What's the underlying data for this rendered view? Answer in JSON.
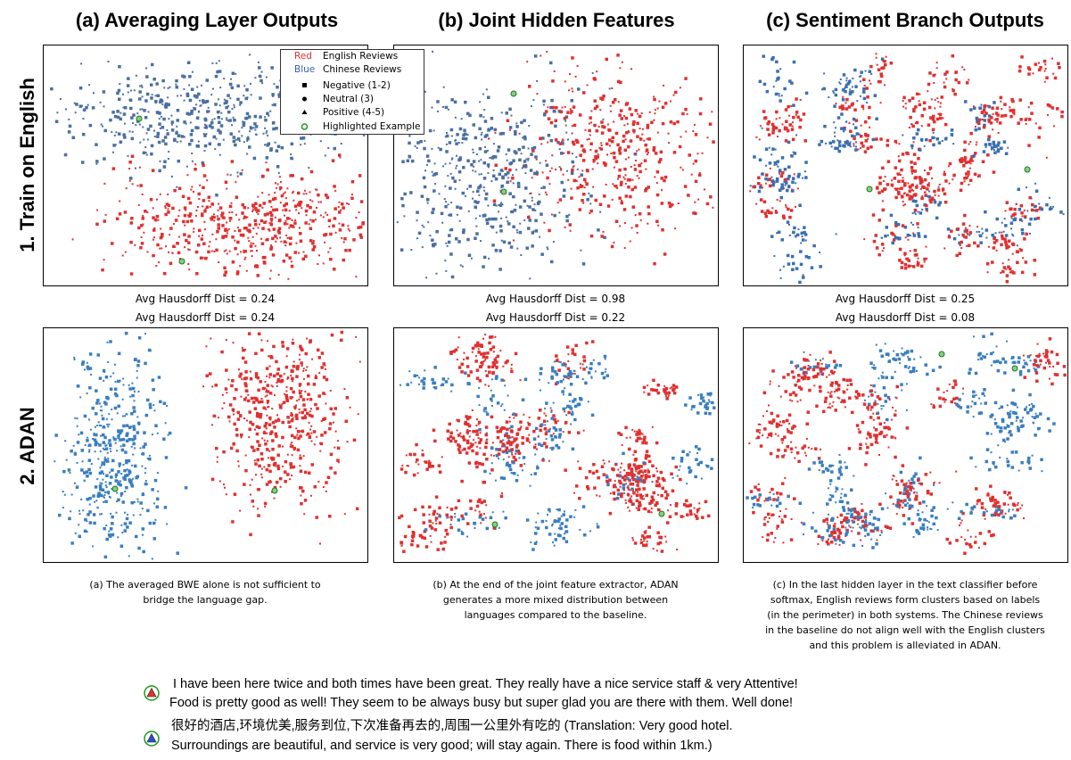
{
  "column_titles": [
    "(a) Averaging Layer Outputs",
    "(b) Joint Hidden Features",
    "(c) Sentiment Branch Outputs"
  ],
  "row_labels": [
    "1. Train on English",
    "2. ADAN"
  ],
  "legend": {
    "items": [
      {
        "key": "Red",
        "label": "English Reviews"
      },
      {
        "key": "Blue",
        "label": "Chinese Reviews"
      },
      {
        "label": "Negative (1-2)"
      },
      {
        "label": "Neutral (3)"
      },
      {
        "label": "Positive (4-5)"
      },
      {
        "label": "Highlighted Example"
      }
    ]
  },
  "distances": [
    [
      "Avg Hausdorff Dist = 0.24",
      "Avg Hausdorff Dist = 0.24"
    ],
    [
      "Avg Hausdorff Dist = 0.98",
      "Avg Hausdorff Dist = 0.22"
    ],
    [
      "Avg Hausdorff Dist = 0.25",
      "Avg Hausdorff Dist = 0.08"
    ]
  ],
  "captions": [
    [
      "(a) The averaged BWE alone is not sufficient to",
      "bridge the language gap."
    ],
    [
      "(b) At the end of the joint feature extractor, ADAN",
      "generates a more mixed distribution between",
      "languages compared to the baseline."
    ],
    [
      "(c) In the last hidden layer in the text classifier before",
      "softmax, English reviews form clusters based on labels",
      "(in the perimeter) in both systems. The Chinese reviews",
      "in the baseline do not align well with the English clusters",
      "and this problem is alleviated in ADAN."
    ]
  ],
  "examples": [
    {
      "lines": [
        "I have been here twice and both times have been great. They really have a nice service staff & very Attentive!",
        "Food is pretty good as well! They seem to be always busy but super glad you are there with them. Well done!"
      ]
    },
    {
      "lines": [
        "很好的酒店,环境优美,服务到位,下次准备再去的,周围一公里外有吃的 (Translation: Very good hotel.",
        "Surroundings are beautiful, and service is very good; will stay again. There is food within 1km.)"
      ]
    }
  ]
}
